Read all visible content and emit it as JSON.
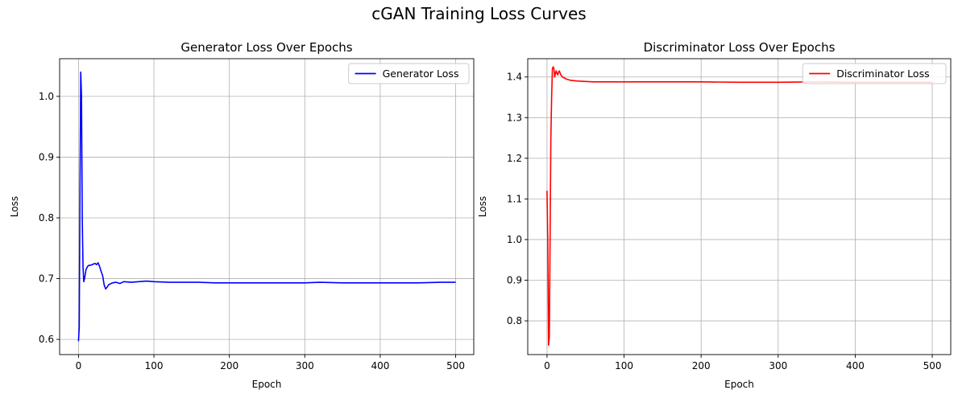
{
  "figure": {
    "suptitle": "cGAN Training Loss Curves"
  },
  "chart_data": [
    {
      "type": "line",
      "title": "Generator Loss Over Epochs",
      "xlabel": "Epoch",
      "ylabel": "Loss",
      "xlim": [
        -25,
        524
      ],
      "ylim": [
        0.575,
        1.062
      ],
      "xticks": [
        0,
        100,
        200,
        300,
        400,
        500
      ],
      "yticks": [
        0.6,
        0.7,
        0.8,
        0.9,
        1.0
      ],
      "grid": true,
      "legend_position": "upper right",
      "series": [
        {
          "name": "Generator Loss",
          "color": "#0000ff",
          "x": [
            0,
            1,
            2,
            3,
            4,
            5,
            6,
            7,
            8,
            10,
            12,
            14,
            16,
            18,
            20,
            22,
            24,
            26,
            28,
            30,
            32,
            34,
            36,
            38,
            40,
            45,
            50,
            55,
            60,
            70,
            80,
            90,
            100,
            120,
            140,
            160,
            180,
            200,
            250,
            300,
            320,
            350,
            400,
            450,
            480,
            500
          ],
          "y": [
            0.597,
            0.62,
            0.85,
            1.04,
            1.0,
            0.8,
            0.72,
            0.695,
            0.7,
            0.715,
            0.72,
            0.722,
            0.722,
            0.723,
            0.724,
            0.725,
            0.723,
            0.726,
            0.72,
            0.712,
            0.705,
            0.69,
            0.683,
            0.686,
            0.69,
            0.693,
            0.694,
            0.692,
            0.695,
            0.694,
            0.695,
            0.696,
            0.695,
            0.694,
            0.694,
            0.694,
            0.693,
            0.693,
            0.693,
            0.693,
            0.694,
            0.693,
            0.693,
            0.693,
            0.694,
            0.694
          ]
        }
      ]
    },
    {
      "type": "line",
      "title": "Discriminator Loss Over Epochs",
      "xlabel": "Epoch",
      "ylabel": "Loss",
      "xlim": [
        -25,
        524
      ],
      "ylim": [
        0.717,
        1.445
      ],
      "xticks": [
        0,
        100,
        200,
        300,
        400,
        500
      ],
      "yticks": [
        0.8,
        0.9,
        1.0,
        1.1,
        1.2,
        1.3,
        1.4
      ],
      "grid": true,
      "legend_position": "upper right",
      "series": [
        {
          "name": "Discriminator Loss",
          "color": "#ff0000",
          "x": [
            0,
            1,
            2,
            3,
            4,
            5,
            6,
            7,
            8,
            9,
            10,
            11,
            12,
            13,
            14,
            15,
            16,
            18,
            20,
            25,
            30,
            40,
            50,
            60,
            80,
            100,
            150,
            200,
            250,
            300,
            350,
            400,
            450,
            500
          ],
          "y": [
            1.12,
            1.0,
            0.74,
            0.76,
            1.0,
            1.25,
            1.35,
            1.42,
            1.425,
            1.42,
            1.4,
            1.41,
            1.415,
            1.408,
            1.405,
            1.412,
            1.415,
            1.405,
            1.4,
            1.395,
            1.392,
            1.39,
            1.389,
            1.388,
            1.388,
            1.388,
            1.388,
            1.388,
            1.387,
            1.387,
            1.388,
            1.387,
            1.387,
            1.387
          ]
        }
      ]
    }
  ]
}
